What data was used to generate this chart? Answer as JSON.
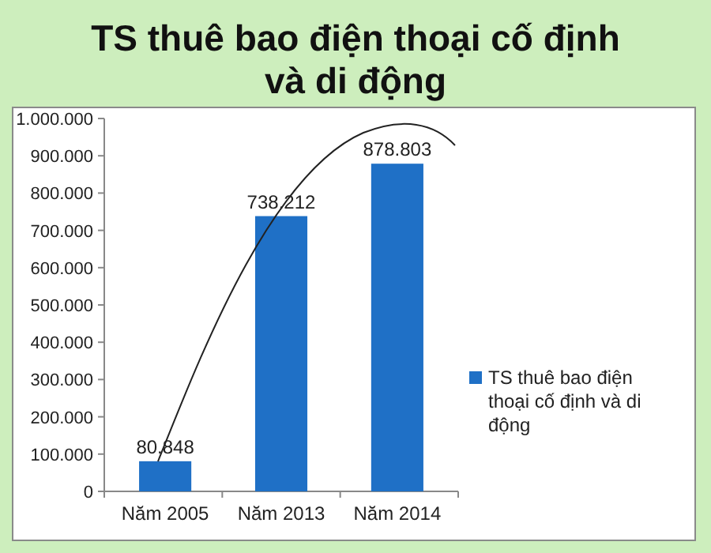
{
  "chart_data": {
    "type": "bar",
    "title": "TS thuê bao điện thoại cố định và di động",
    "categories": [
      "Năm 2005",
      "Năm 2013",
      "Năm 2014"
    ],
    "series": [
      {
        "name": "TS thuê bao điện thoại cố định và di động",
        "color": "#1f70c6",
        "values": [
          80848,
          738212,
          878803
        ],
        "value_labels": [
          "80.848",
          "738.212",
          "878.803"
        ]
      }
    ],
    "ylim": [
      0,
      1000000
    ],
    "yticks": [
      {
        "value": 0,
        "label": "0"
      },
      {
        "value": 100000,
        "label": "100.000"
      },
      {
        "value": 200000,
        "label": "200.000"
      },
      {
        "value": 300000,
        "label": "300.000"
      },
      {
        "value": 400000,
        "label": "400.000"
      },
      {
        "value": 500000,
        "label": "500.000"
      },
      {
        "value": 600000,
        "label": "600.000"
      },
      {
        "value": 700000,
        "label": "700.000"
      },
      {
        "value": 800000,
        "label": "800.000"
      },
      {
        "value": 900000,
        "label": "900.000"
      },
      {
        "value": 1000000,
        "label": "1.000.000"
      }
    ],
    "grid": false,
    "legend": "right"
  }
}
